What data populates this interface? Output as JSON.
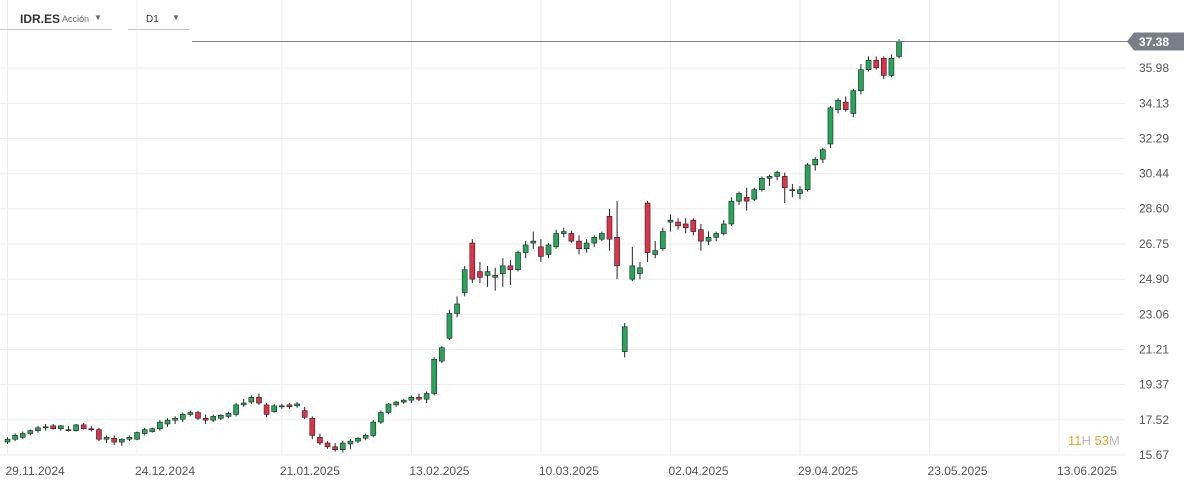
{
  "header": {
    "symbol": "IDR.ES",
    "type_label": "Acción",
    "timeframe": "D1"
  },
  "timer": {
    "hours": "11",
    "hours_unit": "H",
    "minutes": "53",
    "minutes_unit": "M"
  },
  "colors": {
    "up": "#26a65b",
    "down": "#e0314a",
    "grid": "#eeeeee",
    "price_tag": "#7a7f87"
  },
  "chart_data": {
    "type": "candlestick",
    "title": "",
    "xlabel": "",
    "ylabel": "",
    "ylim": [
      15.67,
      38.3
    ],
    "y_ticks": [
      "15.67",
      "17.52",
      "19.37",
      "21.21",
      "23.06",
      "24.90",
      "26.75",
      "28.60",
      "30.44",
      "32.29",
      "34.13",
      "35.98"
    ],
    "x_ticks": [
      {
        "label": "29.11.2024",
        "index": 0
      },
      {
        "label": "24.12.2024",
        "index": 17
      },
      {
        "label": "21.01.2025",
        "index": 36
      },
      {
        "label": "13.02.2025",
        "index": 53
      },
      {
        "label": "10.03.2025",
        "index": 70
      },
      {
        "label": "02.04.2025",
        "index": 87
      },
      {
        "label": "29.04.2025",
        "index": 104
      },
      {
        "label": "23.05.2025",
        "index": 121
      },
      {
        "label": "13.06.2025",
        "index": 138
      }
    ],
    "last_price": "37.38",
    "candles": [
      [
        16.35,
        16.6,
        16.25,
        16.5
      ],
      [
        16.5,
        16.8,
        16.4,
        16.7
      ],
      [
        16.6,
        16.9,
        16.5,
        16.8
      ],
      [
        16.8,
        17.0,
        16.7,
        16.95
      ],
      [
        16.95,
        17.2,
        16.85,
        17.1
      ],
      [
        17.1,
        17.3,
        16.95,
        17.15
      ],
      [
        17.2,
        17.3,
        17.0,
        17.05
      ],
      [
        17.05,
        17.25,
        16.95,
        17.2
      ],
      [
        17.0,
        17.2,
        16.9,
        16.95
      ],
      [
        16.95,
        17.3,
        16.9,
        17.25
      ],
      [
        17.25,
        17.35,
        17.0,
        17.05
      ],
      [
        17.05,
        17.2,
        16.9,
        17.0
      ],
      [
        17.0,
        17.1,
        16.4,
        16.5
      ],
      [
        16.5,
        16.7,
        16.3,
        16.6
      ],
      [
        16.55,
        16.7,
        16.2,
        16.35
      ],
      [
        16.35,
        16.55,
        16.15,
        16.5
      ],
      [
        16.5,
        16.7,
        16.4,
        16.6
      ],
      [
        16.5,
        16.9,
        16.45,
        16.85
      ],
      [
        16.8,
        17.1,
        16.7,
        17.0
      ],
      [
        16.9,
        17.1,
        16.85,
        17.05
      ],
      [
        17.05,
        17.5,
        16.95,
        17.4
      ],
      [
        17.3,
        17.6,
        17.15,
        17.5
      ],
      [
        17.5,
        17.7,
        17.3,
        17.6
      ],
      [
        17.55,
        17.9,
        17.4,
        17.8
      ],
      [
        17.8,
        18.0,
        17.7,
        17.9
      ],
      [
        17.9,
        18.0,
        17.5,
        17.6
      ],
      [
        17.6,
        17.8,
        17.3,
        17.5
      ],
      [
        17.5,
        17.8,
        17.4,
        17.7
      ],
      [
        17.6,
        17.8,
        17.5,
        17.75
      ],
      [
        17.7,
        17.95,
        17.6,
        17.85
      ],
      [
        17.8,
        18.4,
        17.7,
        18.3
      ],
      [
        18.3,
        18.6,
        18.2,
        18.4
      ],
      [
        18.45,
        18.8,
        18.35,
        18.7
      ],
      [
        18.7,
        18.9,
        18.3,
        18.4
      ],
      [
        18.3,
        18.4,
        17.65,
        17.8
      ],
      [
        17.95,
        18.35,
        17.9,
        18.25
      ],
      [
        18.2,
        18.35,
        18.1,
        18.25
      ],
      [
        18.3,
        18.4,
        18.1,
        18.2
      ],
      [
        18.25,
        18.45,
        18.15,
        18.35
      ],
      [
        18.0,
        18.2,
        17.55,
        17.65
      ],
      [
        17.6,
        17.7,
        16.5,
        16.7
      ],
      [
        16.6,
        16.8,
        16.2,
        16.3
      ],
      [
        16.3,
        16.4,
        16.0,
        16.1
      ],
      [
        16.1,
        16.3,
        15.85,
        15.95
      ],
      [
        15.95,
        16.4,
        15.8,
        16.3
      ],
      [
        16.25,
        16.5,
        16.0,
        16.4
      ],
      [
        16.4,
        16.6,
        16.3,
        16.55
      ],
      [
        16.55,
        16.8,
        16.45,
        16.7
      ],
      [
        16.7,
        17.5,
        16.6,
        17.4
      ],
      [
        17.4,
        18.0,
        17.3,
        17.9
      ],
      [
        17.9,
        18.4,
        17.8,
        18.35
      ],
      [
        18.3,
        18.5,
        18.2,
        18.45
      ],
      [
        18.45,
        18.6,
        18.35,
        18.55
      ],
      [
        18.55,
        18.8,
        18.4,
        18.7
      ],
      [
        18.7,
        18.9,
        18.5,
        18.6
      ],
      [
        18.6,
        19.0,
        18.4,
        18.9
      ],
      [
        18.9,
        20.8,
        18.8,
        20.7
      ],
      [
        20.6,
        21.4,
        20.5,
        21.3
      ],
      [
        21.8,
        23.3,
        21.7,
        23.1
      ],
      [
        23.1,
        24.0,
        22.9,
        23.6
      ],
      [
        24.2,
        25.6,
        24.0,
        25.4
      ],
      [
        26.8,
        27.0,
        24.7,
        24.9
      ],
      [
        25.3,
        25.8,
        24.7,
        25.0
      ],
      [
        25.1,
        25.6,
        24.5,
        25.3
      ],
      [
        25.0,
        25.5,
        24.3,
        25.1
      ],
      [
        25.2,
        26.0,
        24.5,
        25.6
      ],
      [
        25.6,
        25.9,
        24.6,
        25.4
      ],
      [
        25.4,
        26.4,
        25.3,
        26.3
      ],
      [
        26.3,
        26.9,
        26.0,
        26.7
      ],
      [
        26.8,
        27.4,
        26.5,
        26.9
      ],
      [
        26.6,
        27.0,
        25.8,
        26.1
      ],
      [
        26.2,
        26.8,
        26.0,
        26.7
      ],
      [
        26.6,
        27.5,
        26.5,
        27.3
      ],
      [
        27.3,
        27.6,
        27.1,
        27.4
      ],
      [
        27.3,
        27.45,
        26.8,
        26.9
      ],
      [
        26.9,
        27.2,
        26.2,
        26.5
      ],
      [
        26.5,
        27.0,
        26.3,
        26.8
      ],
      [
        26.8,
        27.2,
        26.6,
        27.1
      ],
      [
        27.0,
        27.4,
        26.9,
        27.3
      ],
      [
        28.2,
        28.6,
        26.4,
        27.0
      ],
      [
        27.1,
        29.0,
        24.9,
        25.6
      ],
      [
        21.1,
        22.6,
        20.8,
        22.4
      ],
      [
        24.9,
        26.6,
        24.8,
        25.6
      ],
      [
        25.2,
        25.8,
        24.9,
        25.5
      ],
      [
        28.9,
        29.0,
        25.8,
        26.3
      ],
      [
        26.2,
        26.9,
        26.0,
        26.4
      ],
      [
        26.5,
        27.6,
        26.4,
        27.4
      ],
      [
        27.9,
        28.3,
        27.4,
        28.0
      ],
      [
        27.9,
        28.1,
        27.5,
        27.7
      ],
      [
        27.8,
        28.1,
        27.3,
        27.6
      ],
      [
        28.0,
        28.1,
        27.2,
        27.4
      ],
      [
        27.5,
        27.8,
        26.4,
        26.9
      ],
      [
        26.9,
        27.4,
        26.7,
        27.1
      ],
      [
        27.1,
        27.4,
        26.9,
        27.3
      ],
      [
        27.3,
        28.0,
        27.2,
        27.8
      ],
      [
        27.8,
        29.2,
        27.7,
        29.0
      ],
      [
        29.0,
        29.5,
        28.8,
        29.4
      ],
      [
        29.2,
        29.7,
        28.5,
        29.0
      ],
      [
        29.1,
        29.7,
        29.0,
        29.6
      ],
      [
        29.6,
        30.3,
        29.5,
        30.2
      ],
      [
        30.2,
        30.4,
        29.8,
        30.3
      ],
      [
        30.3,
        30.6,
        30.1,
        30.5
      ],
      [
        30.3,
        30.5,
        28.9,
        29.7
      ],
      [
        29.6,
        29.9,
        29.2,
        29.6
      ],
      [
        29.4,
        29.8,
        29.1,
        29.6
      ],
      [
        29.6,
        31.0,
        29.5,
        30.9
      ],
      [
        30.9,
        31.3,
        30.6,
        31.2
      ],
      [
        31.2,
        31.8,
        31.0,
        31.7
      ],
      [
        32.0,
        34.0,
        31.8,
        33.9
      ],
      [
        33.8,
        34.4,
        33.6,
        34.3
      ],
      [
        34.2,
        34.5,
        33.7,
        33.8
      ],
      [
        33.6,
        34.9,
        33.4,
        34.8
      ],
      [
        34.8,
        36.2,
        34.6,
        35.9
      ],
      [
        35.9,
        36.6,
        35.8,
        36.4
      ],
      [
        36.4,
        36.6,
        35.9,
        36.0
      ],
      [
        36.5,
        36.6,
        35.4,
        35.6
      ],
      [
        35.6,
        36.7,
        35.5,
        36.5
      ],
      [
        36.6,
        37.5,
        36.5,
        37.38
      ]
    ]
  }
}
